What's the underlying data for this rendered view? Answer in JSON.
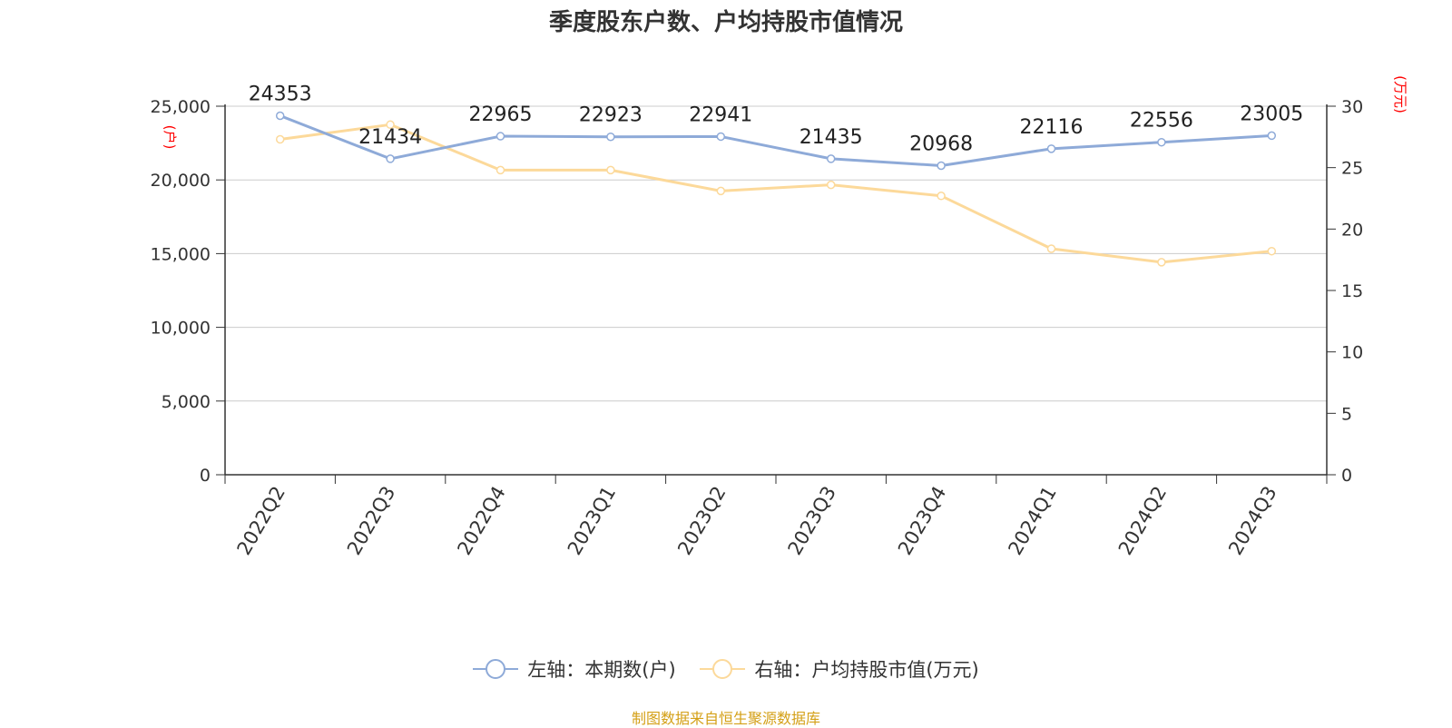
{
  "title": "季度股东户数、户均持股市值情况",
  "source": "制图数据来自恒生聚源数据库",
  "colors": {
    "left_series": "#8eaad8",
    "right_series": "#fcd99a",
    "unit_label": "#ff0000",
    "source": "#d4a017"
  },
  "chart_data": {
    "type": "line",
    "title": "季度股东户数、户均持股市值情况",
    "categories": [
      "2022Q2",
      "2022Q3",
      "2022Q4",
      "2023Q1",
      "2023Q2",
      "2023Q3",
      "2023Q4",
      "2024Q1",
      "2024Q2",
      "2024Q3"
    ],
    "left_axis": {
      "unit": "(户)",
      "range": [
        0,
        25000
      ],
      "ticks": [
        "0",
        "5,000",
        "10,000",
        "15,000",
        "20,000",
        "25,000"
      ],
      "tick_values": [
        0,
        5000,
        10000,
        15000,
        20000,
        25000
      ]
    },
    "right_axis": {
      "unit": "(万元)",
      "range": [
        0,
        30
      ],
      "ticks": [
        "0",
        "5",
        "10",
        "15",
        "20",
        "25",
        "30"
      ],
      "tick_values": [
        0,
        5,
        10,
        15,
        20,
        25,
        30
      ]
    },
    "series": [
      {
        "name": "左轴：本期数(户)",
        "axis": "left",
        "values": [
          24353,
          21434,
          22965,
          22923,
          22941,
          21435,
          20968,
          22116,
          22556,
          23005
        ],
        "labels": [
          "24353",
          "21434",
          "22965",
          "22923",
          "22941",
          "21435",
          "20968",
          "22116",
          "22556",
          "23005"
        ]
      },
      {
        "name": "右轴：户均持股市值(万元)",
        "axis": "right",
        "values": [
          27.3,
          28.5,
          24.8,
          24.8,
          23.1,
          23.6,
          22.7,
          18.4,
          17.3,
          18.2
        ]
      }
    ],
    "grid": true,
    "legend_position": "bottom"
  }
}
